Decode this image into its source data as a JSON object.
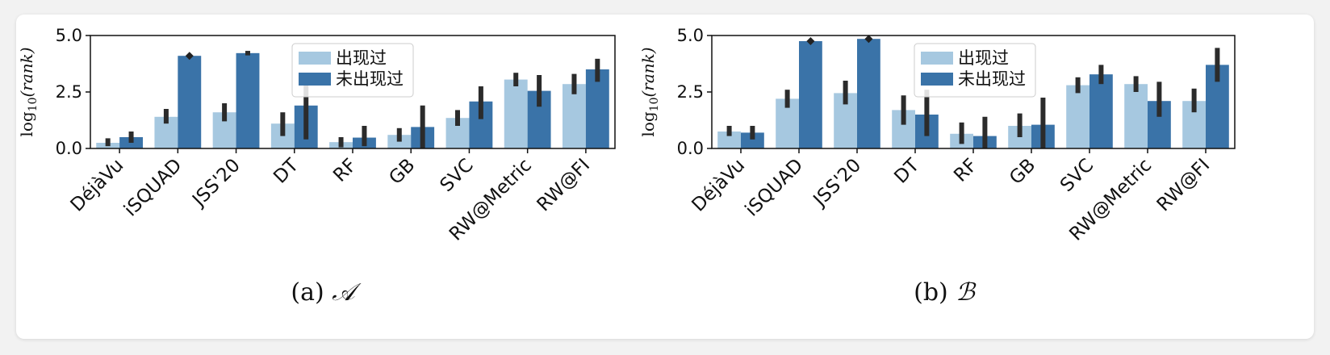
{
  "chart_data": [
    {
      "type": "bar",
      "caption_prefix": "(a)",
      "caption_symbol": "𝒜",
      "ylabel_main": "log",
      "ylabel_sub": "10",
      "ylabel_arg": "(rank)",
      "yticks": [
        "0.0",
        "2.5",
        "5.0"
      ],
      "ylim": [
        0,
        5
      ],
      "legend_placement": "top-center",
      "categories": [
        "DéjàVu",
        "iSQUAD",
        "JSS'20",
        "DT",
        "RF",
        "GB",
        "SVC",
        "RW@Metric",
        "RW@FI"
      ],
      "series": [
        {
          "name": "出现过",
          "color": "#a6c8e0",
          "values": [
            0.25,
            1.4,
            1.6,
            1.1,
            0.28,
            0.6,
            1.35,
            3.05,
            2.85
          ],
          "err_low": [
            0.1,
            1.1,
            1.2,
            0.55,
            0.05,
            0.3,
            1.0,
            2.75,
            2.4
          ],
          "err_high": [
            0.45,
            1.75,
            2.0,
            1.6,
            0.5,
            0.9,
            1.7,
            3.35,
            3.3
          ]
        },
        {
          "name": "未出现过",
          "color": "#3a73a8",
          "values": [
            0.5,
            4.1,
            4.22,
            1.9,
            0.48,
            0.95,
            2.08,
            2.55,
            3.5
          ],
          "err_low": [
            0.25,
            4.1,
            4.12,
            0.4,
            0.1,
            0.0,
            1.3,
            1.85,
            2.95
          ],
          "err_high": [
            0.75,
            4.1,
            4.32,
            3.3,
            1.0,
            1.9,
            2.75,
            3.25,
            3.97
          ]
        }
      ]
    },
    {
      "type": "bar",
      "caption_prefix": "(b)",
      "caption_symbol": "ℬ",
      "ylabel_main": "log",
      "ylabel_sub": "10",
      "ylabel_arg": "(rank)",
      "yticks": [
        "0.0",
        "2.5",
        "5.0"
      ],
      "ylim": [
        0,
        5
      ],
      "legend_placement": "top-center",
      "categories": [
        "DéjàVu",
        "iSQUAD",
        "JSS'20",
        "DT",
        "RF",
        "GB",
        "SVC",
        "RW@Metric",
        "RW@FI"
      ],
      "series": [
        {
          "name": "出现过",
          "color": "#a6c8e0",
          "values": [
            0.75,
            2.2,
            2.45,
            1.7,
            0.65,
            1.0,
            2.8,
            2.85,
            2.1
          ],
          "err_low": [
            0.55,
            1.8,
            1.95,
            1.05,
            0.2,
            0.5,
            2.45,
            2.5,
            1.6
          ],
          "err_high": [
            1.0,
            2.6,
            3.0,
            2.35,
            1.15,
            1.55,
            3.15,
            3.2,
            2.65
          ]
        },
        {
          "name": "未出现过",
          "color": "#3a73a8",
          "values": [
            0.7,
            4.75,
            4.85,
            1.5,
            0.55,
            1.05,
            3.28,
            2.1,
            3.7
          ],
          "err_low": [
            0.4,
            4.75,
            4.85,
            0.55,
            0.0,
            0.0,
            2.85,
            1.4,
            2.95
          ],
          "err_high": [
            1.0,
            4.75,
            4.85,
            2.6,
            1.4,
            2.25,
            3.7,
            2.95,
            4.45
          ]
        }
      ]
    }
  ]
}
